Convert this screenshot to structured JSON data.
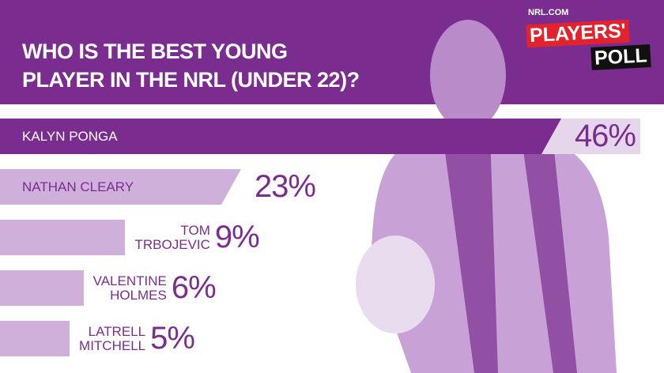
{
  "chart_data": {
    "type": "bar",
    "orientation": "horizontal",
    "title": [
      "WHO IS THE BEST YOUNG",
      "PLAYER IN THE NRL (UNDER 22)?"
    ],
    "logo": [
      "NRL.COM",
      "PLAYERS'",
      "POLL"
    ],
    "categories": [
      "KALYN PONGA",
      "NATHAN CLEARY",
      "TOM TRBOJEVIC",
      "VALENTINE HOLMES",
      "LATRELL MITCHELL"
    ],
    "values": [
      46,
      23,
      9,
      6,
      5
    ],
    "value_labels": [
      "46%",
      "23%",
      "9%",
      "6%",
      "5%"
    ],
    "colors": [
      "#7a2d8f",
      "#cfb0db",
      "#cfb0db",
      "#cfb0db",
      "#cfb0db"
    ]
  }
}
